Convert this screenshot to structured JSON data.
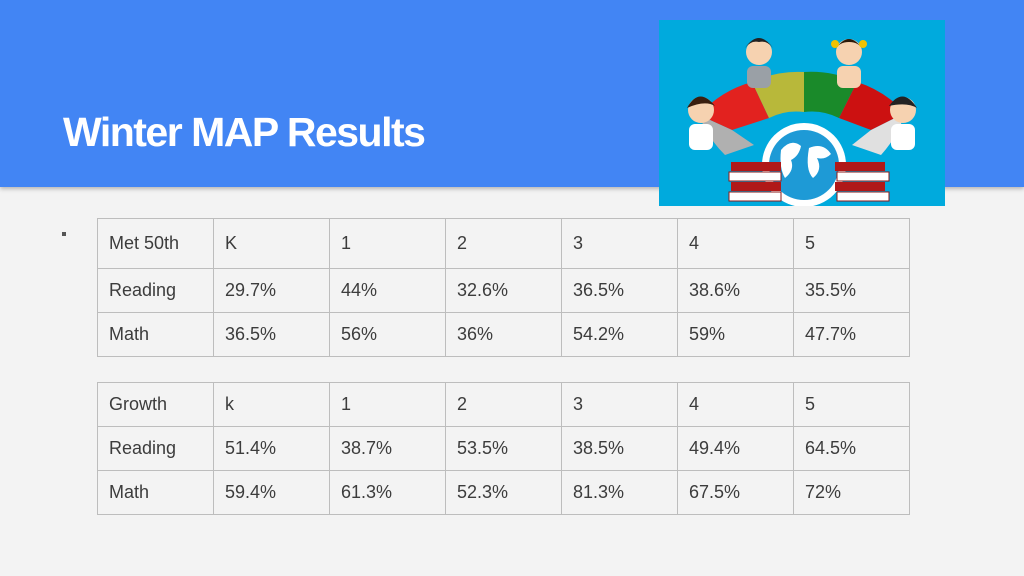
{
  "slide": {
    "title": "Winter MAP Results"
  },
  "met50th_table": {
    "header": [
      "Met 50th",
      "K",
      "1",
      "2",
      "3",
      "4",
      "5"
    ],
    "rows": [
      [
        "Reading",
        "29.7%",
        "44%",
        "32.6%",
        "36.5%",
        "38.6%",
        "35.5%"
      ],
      [
        "Math",
        "36.5%",
        "56%",
        "36%",
        "54.2%",
        "59%",
        "47.7%"
      ]
    ]
  },
  "growth_table": {
    "header": [
      "Growth",
      "k",
      "1",
      "2",
      "3",
      "4",
      "5"
    ],
    "rows": [
      [
        "Reading",
        "51.4%",
        "38.7%",
        "53.5%",
        "38.5%",
        "49.4%",
        "64.5%"
      ],
      [
        "Math",
        "59.4%",
        "61.3%",
        "52.3%",
        "81.3%",
        "67.5%",
        "72%"
      ]
    ]
  },
  "colors": {
    "header_blue": "#4285f4",
    "illustration_bg": "#00aadd"
  },
  "icons": [
    "students-globe-illustration"
  ]
}
